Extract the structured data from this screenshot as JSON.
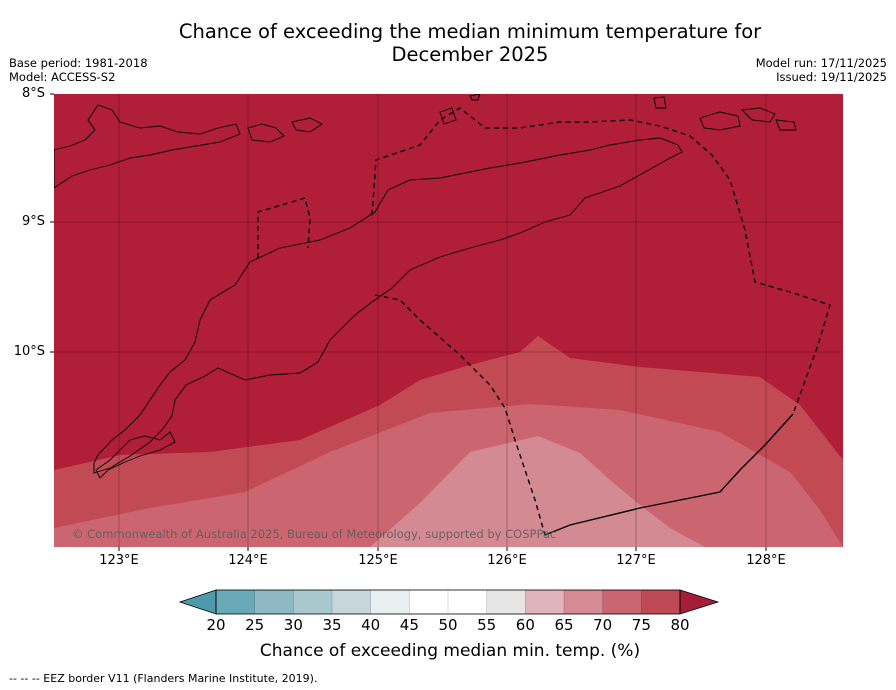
{
  "title_line1": "Chance of exceeding the median minimum temperature for",
  "title_line2": "December 2025",
  "base_period": "Base period: 1981-2018",
  "model": "Model: ACCESS-S2",
  "model_run": "Model run: 17/11/2025",
  "issued": "Issued: 19/11/2025",
  "latitudes": [
    "8°S",
    "9°S",
    "10°S"
  ],
  "longitudes": [
    "123°E",
    "124°E",
    "125°E",
    "126°E",
    "127°E",
    "128°E"
  ],
  "copyright": "© Commonwealth of Australia 2025, Bureau of Meteorology, supported by COSPPac",
  "colorbar": {
    "ticks": [
      "20",
      "25",
      "30",
      "35",
      "40",
      "45",
      "50",
      "55",
      "60",
      "65",
      "70",
      "75",
      "80"
    ],
    "colors": [
      "#6aaab8",
      "#8eb9c4",
      "#a9c8cd",
      "#c6d6da",
      "#e7eff1",
      "#ffffff",
      "#ffffff",
      "#e6e6e6",
      "#e0b4bc",
      "#d68a94",
      "#c9666f",
      "#be4a55",
      "#a51d38"
    ],
    "low_color": "#4e9aab",
    "label": "Chance of exceeding median min. temp. (%)"
  },
  "map_colors": {
    "c80": "#b01e38",
    "c75": "#c24a55",
    "c70": "#cb6671",
    "c65": "#d38a93"
  },
  "footnote": "--  --  -- EEZ border V11 (Flanders Marine Institute, 2019)."
}
